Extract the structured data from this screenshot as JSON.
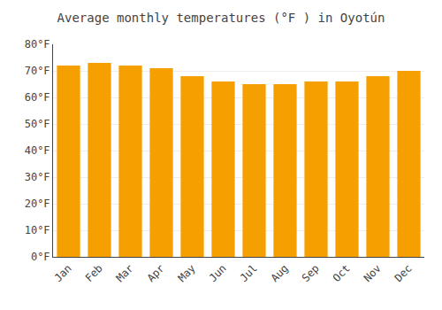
{
  "chart_data": {
    "type": "bar",
    "title": "Average monthly temperatures (°F ) in Oyotún",
    "categories": [
      "Jan",
      "Feb",
      "Mar",
      "Apr",
      "May",
      "Jun",
      "Jul",
      "Aug",
      "Sep",
      "Oct",
      "Nov",
      "Dec"
    ],
    "values": [
      72,
      73,
      72,
      71,
      68,
      66,
      65,
      65,
      66,
      66,
      68,
      70
    ],
    "color": "#F5A000",
    "ylim": [
      0,
      80
    ],
    "yticks": [
      {
        "value": 0,
        "label": "0°F"
      },
      {
        "value": 10,
        "label": "10°F"
      },
      {
        "value": 20,
        "label": "20°F"
      },
      {
        "value": 30,
        "label": "30°F"
      },
      {
        "value": 40,
        "label": "40°F"
      },
      {
        "value": 50,
        "label": "50°F"
      },
      {
        "value": 60,
        "label": "60°F"
      },
      {
        "value": 70,
        "label": "70°F"
      },
      {
        "value": 80,
        "label": "80°F"
      }
    ],
    "grid": true
  }
}
